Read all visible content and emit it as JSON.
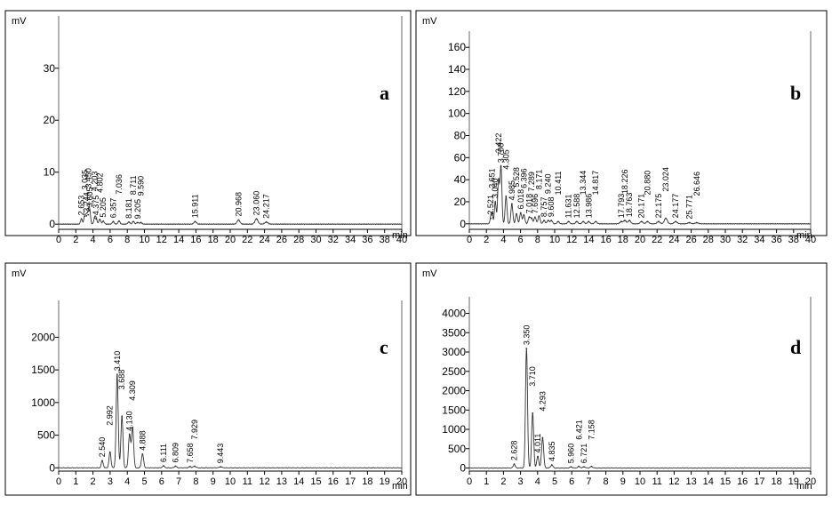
{
  "chart_data": [
    {
      "type": "line",
      "panel_letter": "a",
      "ylabel": "mV",
      "xlabel": "min",
      "xlim": [
        0,
        40
      ],
      "ylim": [
        -1,
        38
      ],
      "yticks": [
        0,
        10,
        20,
        30
      ],
      "xticks": [
        0,
        2,
        4,
        6,
        8,
        10,
        12,
        14,
        16,
        18,
        20,
        22,
        24,
        26,
        28,
        30,
        32,
        34,
        36,
        38,
        40
      ],
      "xticklabels": [
        "0",
        "2",
        "4",
        "6",
        "8",
        "10",
        "12",
        "14",
        "16",
        "18",
        "20",
        "22",
        "24",
        "26",
        "28",
        "30",
        "32",
        "34",
        "36",
        "38",
        "40"
      ],
      "peaks": [
        {
          "x": 2.653,
          "y": 1.0,
          "label": "2.653"
        },
        {
          "x": 3.035,
          "y": 1.5,
          "label": "3.035"
        },
        {
          "x": 3.244,
          "y": 1.6,
          "label": "3.244"
        },
        {
          "x": 3.45,
          "y": 1.8,
          "label": "3.450"
        },
        {
          "x": 3.605,
          "y": 2.6,
          "label": "3.605"
        },
        {
          "x": 4.203,
          "y": 1.2,
          "label": "4.203"
        },
        {
          "x": 4.375,
          "y": 1.0,
          "label": "4.375"
        },
        {
          "x": 4.802,
          "y": 0.9,
          "label": "4.802"
        },
        {
          "x": 5.205,
          "y": 0.6,
          "label": "5.205"
        },
        {
          "x": 6.357,
          "y": 0.5,
          "label": "6.357"
        },
        {
          "x": 7.036,
          "y": 0.6,
          "label": "7.036"
        },
        {
          "x": 8.181,
          "y": 0.4,
          "label": "8.181"
        },
        {
          "x": 8.711,
          "y": 0.5,
          "label": "8.711"
        },
        {
          "x": 9.205,
          "y": 0.3,
          "label": "9.205"
        },
        {
          "x": 9.59,
          "y": 0.3,
          "label": "9.590"
        },
        {
          "x": 15.911,
          "y": 0.5,
          "label": "15.911"
        },
        {
          "x": 20.968,
          "y": 0.8,
          "label": "20.968"
        },
        {
          "x": 23.06,
          "y": 1.0,
          "label": "23.060"
        },
        {
          "x": 24.217,
          "y": 0.4,
          "label": "24.217"
        }
      ]
    },
    {
      "type": "line",
      "panel_letter": "b",
      "ylabel": "mV",
      "xlabel": "min",
      "xlim": [
        0,
        40
      ],
      "ylim": [
        -5,
        165
      ],
      "yticks": [
        0,
        20,
        40,
        60,
        80,
        100,
        120,
        140,
        160
      ],
      "xticks": [
        0,
        2,
        4,
        6,
        8,
        10,
        12,
        14,
        16,
        18,
        20,
        22,
        24,
        26,
        28,
        30,
        32,
        34,
        36,
        38,
        40
      ],
      "xticklabels": [
        "0",
        "2",
        "4",
        "6",
        "8",
        "10",
        "12",
        "14",
        "16",
        "18",
        "20",
        "22",
        "24",
        "26",
        "28",
        "30",
        "32",
        "34",
        "36",
        "38",
        "40"
      ],
      "peaks": [
        {
          "x": 2.521,
          "y": 5,
          "label": "2.521"
        },
        {
          "x": 2.651,
          "y": 8,
          "label": "2.651"
        },
        {
          "x": 3.04,
          "y": 20,
          "label": "3.040"
        },
        {
          "x": 3.422,
          "y": 40,
          "label": "3.422"
        },
        {
          "x": 3.708,
          "y": 52,
          "label": "3.708"
        },
        {
          "x": 4.305,
          "y": 25,
          "label": "4.305"
        },
        {
          "x": 4.985,
          "y": 18,
          "label": "4.985"
        },
        {
          "x": 5.528,
          "y": 9,
          "label": "5.528"
        },
        {
          "x": 6.018,
          "y": 10,
          "label": "6.018"
        },
        {
          "x": 6.396,
          "y": 8,
          "label": "6.396"
        },
        {
          "x": 7.018,
          "y": 6,
          "label": "7.018"
        },
        {
          "x": 7.289,
          "y": 5,
          "label": "7.289"
        },
        {
          "x": 7.696,
          "y": 6,
          "label": "7.696"
        },
        {
          "x": 8.171,
          "y": 7,
          "label": "8.171"
        },
        {
          "x": 8.757,
          "y": 3,
          "label": "8.757"
        },
        {
          "x": 9.24,
          "y": 3,
          "label": "9.240"
        },
        {
          "x": 9.608,
          "y": 3,
          "label": "9.608"
        },
        {
          "x": 10.411,
          "y": 2,
          "label": "10.411"
        },
        {
          "x": 11.631,
          "y": 2,
          "label": "11.631"
        },
        {
          "x": 12.588,
          "y": 2,
          "label": "12.588"
        },
        {
          "x": 13.344,
          "y": 2,
          "label": "13.344"
        },
        {
          "x": 13.986,
          "y": 2,
          "label": "13.986"
        },
        {
          "x": 14.817,
          "y": 2,
          "label": "14.817"
        },
        {
          "x": 17.793,
          "y": 2,
          "label": "17.793"
        },
        {
          "x": 18.226,
          "y": 3,
          "label": "18.226"
        },
        {
          "x": 18.763,
          "y": 3,
          "label": "18.763"
        },
        {
          "x": 20.171,
          "y": 2,
          "label": "20.171"
        },
        {
          "x": 20.88,
          "y": 2,
          "label": "20.880"
        },
        {
          "x": 22.175,
          "y": 2,
          "label": "22.175"
        },
        {
          "x": 23.024,
          "y": 5,
          "label": "23.024"
        },
        {
          "x": 24.177,
          "y": 2,
          "label": "24.177"
        },
        {
          "x": 25.771,
          "y": 1,
          "label": "25.771"
        },
        {
          "x": 26.646,
          "y": 1,
          "label": "26.646"
        }
      ]
    },
    {
      "type": "line",
      "panel_letter": "c",
      "ylabel": "mV",
      "xlabel": "min",
      "xlim": [
        0,
        20
      ],
      "ylim": [
        -50,
        2400
      ],
      "yticks": [
        0,
        500,
        1000,
        1500,
        2000
      ],
      "xticks": [
        0,
        1,
        2,
        3,
        4,
        5,
        6,
        7,
        8,
        9,
        10,
        11,
        12,
        13,
        14,
        15,
        16,
        17,
        18,
        19,
        20
      ],
      "xticklabels": [
        "0",
        "1",
        "2",
        "3",
        "4",
        "5",
        "6",
        "7",
        "8",
        "9",
        "10",
        "11",
        "12",
        "13",
        "14",
        "15",
        "16",
        "17",
        "18",
        "19",
        "20"
      ],
      "peaks": [
        {
          "x": 2.54,
          "y": 110,
          "label": "2.540"
        },
        {
          "x": 2.992,
          "y": 240,
          "label": "2.992"
        },
        {
          "x": 3.41,
          "y": 1430,
          "label": "3.410"
        },
        {
          "x": 3.688,
          "y": 790,
          "label": "3.688"
        },
        {
          "x": 4.13,
          "y": 510,
          "label": "4.130"
        },
        {
          "x": 4.309,
          "y": 620,
          "label": "4.309"
        },
        {
          "x": 4.888,
          "y": 210,
          "label": "4.888"
        },
        {
          "x": 6.111,
          "y": 30,
          "label": "6.111"
        },
        {
          "x": 6.809,
          "y": 25,
          "label": "6.809"
        },
        {
          "x": 7.658,
          "y": 20,
          "label": "7.658"
        },
        {
          "x": 7.929,
          "y": 25,
          "label": "7.929"
        },
        {
          "x": 9.443,
          "y": 15,
          "label": "9.443"
        }
      ]
    },
    {
      "type": "line",
      "panel_letter": "d",
      "ylabel": "mV",
      "xlabel": "min",
      "xlim": [
        0,
        20
      ],
      "ylim": [
        -80,
        4150
      ],
      "yticks": [
        0,
        500,
        1000,
        1500,
        2000,
        2500,
        3000,
        3500,
        4000
      ],
      "xticks": [
        0,
        1,
        2,
        3,
        4,
        5,
        6,
        7,
        8,
        9,
        10,
        11,
        12,
        13,
        14,
        15,
        16,
        17,
        18,
        19,
        20
      ],
      "xticklabels": [
        "0",
        "1",
        "2",
        "3",
        "4",
        "5",
        "6",
        "7",
        "8",
        "9",
        "10",
        "11",
        "12",
        "13",
        "14",
        "15",
        "16",
        "17",
        "18",
        "19",
        "20"
      ],
      "peaks": [
        {
          "x": 2.628,
          "y": 100,
          "label": "2.628"
        },
        {
          "x": 3.35,
          "y": 3090,
          "label": "3.350"
        },
        {
          "x": 3.71,
          "y": 1420,
          "label": "3.710"
        },
        {
          "x": 4.011,
          "y": 300,
          "label": "4.011"
        },
        {
          "x": 4.293,
          "y": 780,
          "label": "4.293"
        },
        {
          "x": 4.835,
          "y": 80,
          "label": "4.835"
        },
        {
          "x": 5.96,
          "y": 30,
          "label": "5.960"
        },
        {
          "x": 6.421,
          "y": 40,
          "label": "6.421"
        },
        {
          "x": 6.721,
          "y": 30,
          "label": "6.721"
        },
        {
          "x": 7.158,
          "y": 40,
          "label": "7.158"
        }
      ]
    }
  ]
}
